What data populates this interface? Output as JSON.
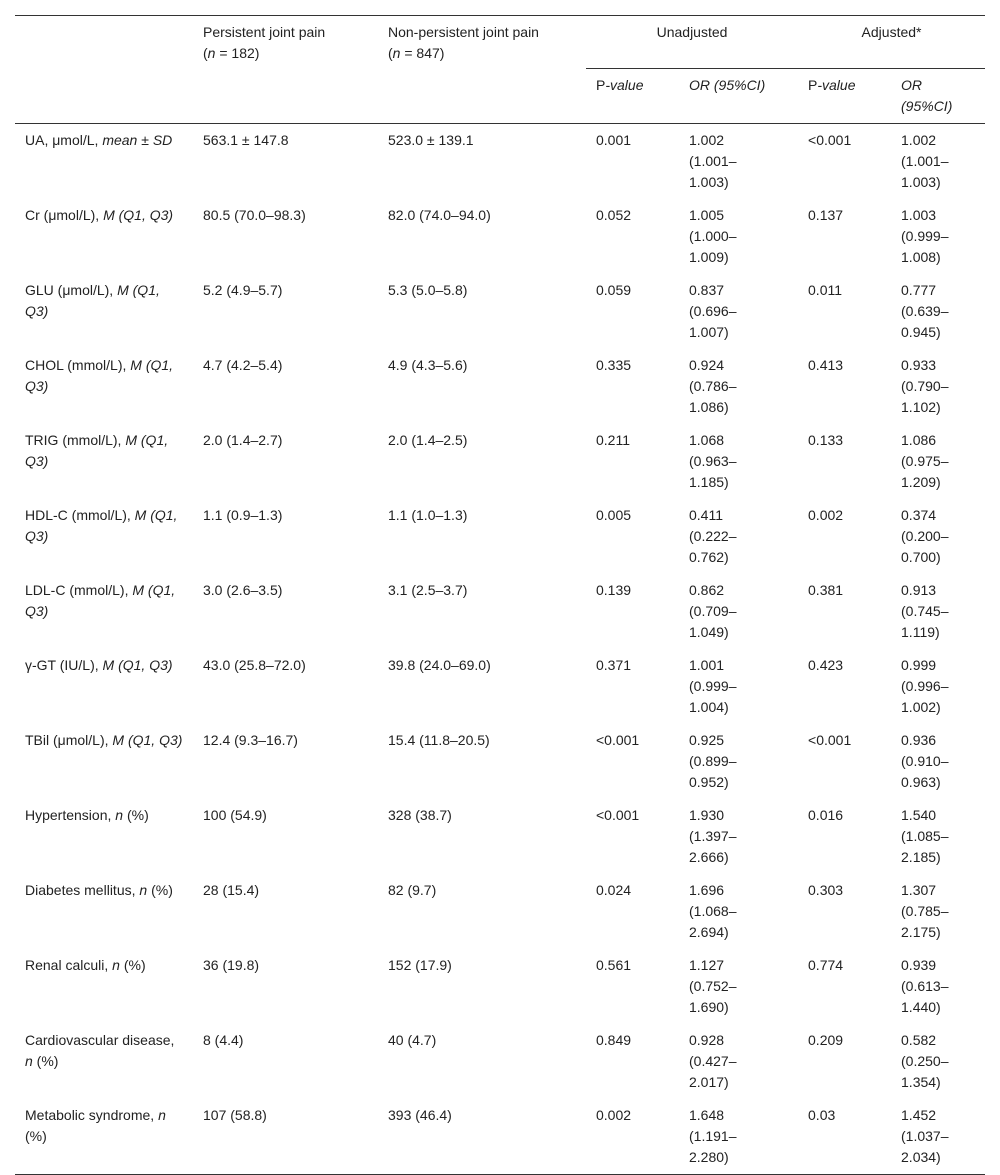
{
  "table": {
    "header": {
      "persistent": {
        "title": "Persistent joint pain",
        "n": [
          "(",
          "n",
          " = 182)"
        ]
      },
      "nonpersistent": {
        "title": "Non-persistent joint pain",
        "n": [
          "(",
          "n",
          " = 847)"
        ]
      },
      "unadjusted": "Unadjusted",
      "adjusted": "Adjusted*",
      "p_value": [
        "P",
        "-value"
      ],
      "or": "OR (95%CI)"
    },
    "rows": [
      {
        "label": [
          "UA, μmol/L, ",
          "mean",
          " ± ",
          "SD"
        ],
        "cells": [
          "563.1 ± 147.8",
          "523.0 ± 139.1",
          "0.001",
          "1.002 (1.001–1.003)",
          "<0.001",
          "1.002 (1.001–1.003)"
        ]
      },
      {
        "label": [
          "Cr (μmol/L), ",
          "M (Q1, Q3)"
        ],
        "cells": [
          "80.5 (70.0–98.3)",
          "82.0 (74.0–94.0)",
          "0.052",
          "1.005 (1.000–1.009)",
          "0.137",
          "1.003 (0.999–1.008)"
        ]
      },
      {
        "label": [
          "GLU (μmol/L), ",
          "M (Q1, Q3)"
        ],
        "cells": [
          "5.2 (4.9–5.7)",
          "5.3 (5.0–5.8)",
          "0.059",
          "0.837 (0.696–1.007)",
          "0.011",
          "0.777 (0.639–0.945)"
        ]
      },
      {
        "label": [
          "CHOL (mmol/L), ",
          "M (Q1, Q3)"
        ],
        "cells": [
          "4.7 (4.2–5.4)",
          "4.9 (4.3–5.6)",
          "0.335",
          "0.924 (0.786–1.086)",
          "0.413",
          "0.933 (0.790–1.102)"
        ]
      },
      {
        "label": [
          "TRIG (mmol/L), ",
          "M (Q1, Q3)"
        ],
        "cells": [
          "2.0 (1.4–2.7)",
          "2.0 (1.4–2.5)",
          "0.211",
          "1.068 (0.963–1.185)",
          "0.133",
          "1.086 (0.975–1.209)"
        ]
      },
      {
        "label": [
          "HDL-C (mmol/L), ",
          "M (Q1, Q3)"
        ],
        "cells": [
          "1.1 (0.9–1.3)",
          "1.1 (1.0–1.3)",
          "0.005",
          "0.411 (0.222–0.762)",
          "0.002",
          "0.374 (0.200–0.700)"
        ]
      },
      {
        "label": [
          "LDL-C (mmol/L), ",
          "M (Q1, Q3)"
        ],
        "cells": [
          "3.0 (2.6–3.5)",
          "3.1 (2.5–3.7)",
          "0.139",
          "0.862 (0.709–1.049)",
          "0.381",
          "0.913 (0.745–1.119)"
        ]
      },
      {
        "label": [
          "γ-GT (IU/L), ",
          "M (Q1, Q3)"
        ],
        "cells": [
          "43.0 (25.8–72.0)",
          "39.8 (24.0–69.0)",
          "0.371",
          "1.001 (0.999–1.004)",
          "0.423",
          "0.999 (0.996–1.002)"
        ]
      },
      {
        "label": [
          "TBil (μmol/L), ",
          "M (Q1, Q3)"
        ],
        "cells": [
          "12.4 (9.3–16.7)",
          "15.4 (11.8–20.5)",
          "<0.001",
          "0.925 (0.899–0.952)",
          "<0.001",
          "0.936 (0.910–0.963)"
        ]
      },
      {
        "label": [
          "Hypertension, ",
          "n",
          " (%)"
        ],
        "cells": [
          "100 (54.9)",
          "328 (38.7)",
          "<0.001",
          "1.930 (1.397–2.666)",
          "0.016",
          "1.540 (1.085–2.185)"
        ]
      },
      {
        "label": [
          "Diabetes mellitus, ",
          "n",
          " (%)"
        ],
        "cells": [
          "28 (15.4)",
          "82 (9.7)",
          "0.024",
          "1.696 (1.068–2.694)",
          "0.303",
          "1.307 (0.785–2.175)"
        ]
      },
      {
        "label": [
          "Renal calculi, ",
          "n",
          " (%)"
        ],
        "cells": [
          "36 (19.8)",
          "152 (17.9)",
          "0.561",
          "1.127 (0.752–1.690)",
          "0.774",
          "0.939 (0.613–1.440)"
        ]
      },
      {
        "label": [
          "Cardiovascular disease, ",
          "n",
          " (%)"
        ],
        "cells": [
          "8 (4.4)",
          "40 (4.7)",
          "0.849",
          "0.928 (0.427–2.017)",
          "0.209",
          "0.582 (0.250–1.354)"
        ]
      },
      {
        "label": [
          "Metabolic syndrome, ",
          "n",
          " (%)"
        ],
        "cells": [
          "107 (58.8)",
          "393 (46.4)",
          "0.002",
          "1.648 (1.191–2.280)",
          "0.03",
          "1.452 (1.037–2.034)"
        ]
      }
    ]
  }
}
